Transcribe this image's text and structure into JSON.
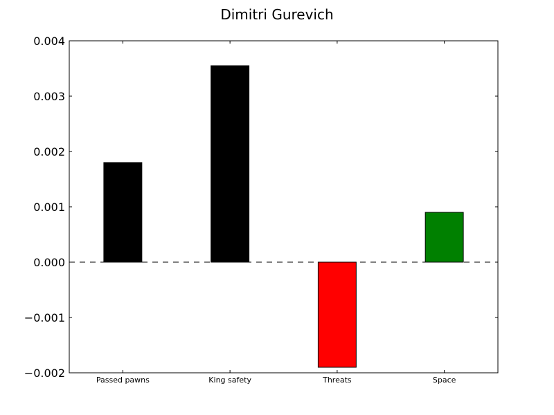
{
  "chart_data": {
    "type": "bar",
    "title": "Dimitri Gurevich",
    "xlabel": "",
    "ylabel": "",
    "categories": [
      "Passed pawns",
      "King safety",
      "Threats",
      "Space"
    ],
    "values": [
      0.0018,
      0.00355,
      -0.0019,
      0.0009
    ],
    "colors": [
      "#000000",
      "#000000",
      "#ff0000",
      "#008000"
    ],
    "ylim": [
      -0.002,
      0.004
    ],
    "yticks": [
      -0.002,
      -0.001,
      0.0,
      0.001,
      0.002,
      0.003,
      0.004
    ],
    "ytick_labels": [
      "−0.002",
      "−0.001",
      "0.000",
      "0.001",
      "0.002",
      "0.003",
      "0.004"
    ],
    "zero_line": "dashed",
    "grid": false,
    "legend": "none"
  }
}
